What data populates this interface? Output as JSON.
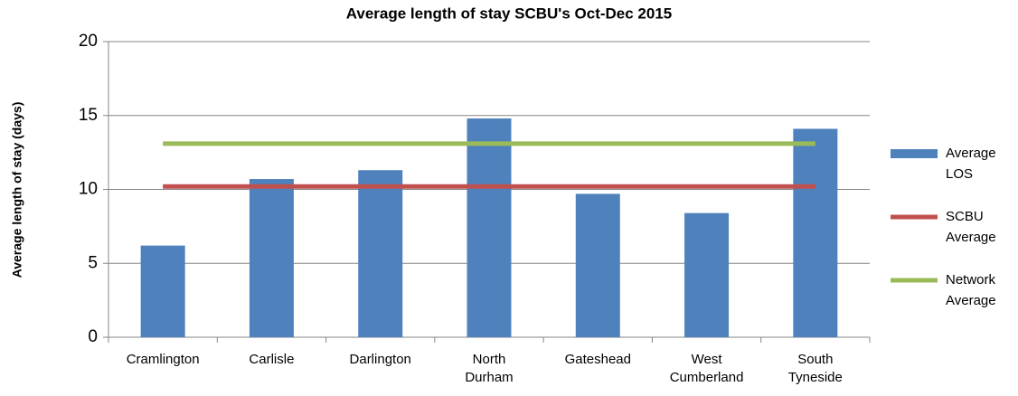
{
  "chart_data": {
    "type": "bar",
    "title": "Average length of stay SCBU's Oct-Dec 2015",
    "y_label": "Average length of stay (days)",
    "categories": [
      "Cramlington",
      "Carlisle",
      "Darlington",
      "North Durham",
      "Gateshead",
      "West Cumberland",
      "South Tyneside"
    ],
    "series": [
      {
        "name": "Average LOS",
        "type": "bar",
        "color": "#4f81bd",
        "values": [
          6.2,
          10.7,
          11.3,
          14.8,
          9.7,
          8.4,
          14.1
        ]
      },
      {
        "name": "SCBU Average",
        "type": "line",
        "color": "#c0504d",
        "values": [
          10.2,
          10.2,
          10.2,
          10.2,
          10.2,
          10.2,
          10.2
        ]
      },
      {
        "name": "Network Average",
        "type": "line",
        "color": "#9bbb59",
        "values": [
          13.1,
          13.1,
          13.1,
          13.1,
          13.1,
          13.1,
          13.1
        ]
      }
    ],
    "ylim": [
      0,
      20
    ],
    "yticks": [
      0,
      5,
      10,
      15,
      20
    ],
    "grid": true,
    "legend": "right"
  }
}
